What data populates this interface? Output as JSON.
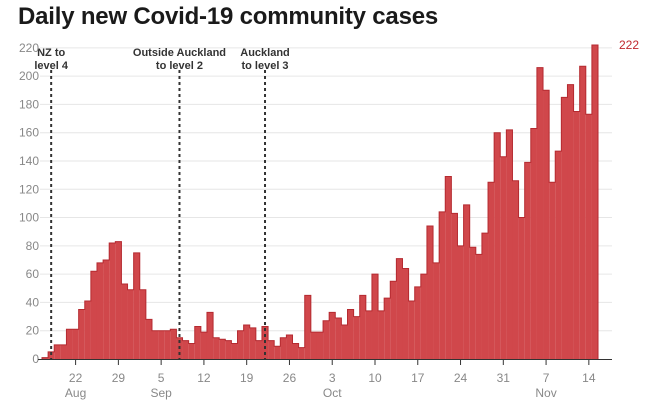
{
  "chart_data": {
    "type": "area",
    "title": "Daily new Covid-19 community cases",
    "xlabel": "",
    "ylabel": "",
    "ylim": [
      0,
      222
    ],
    "y_ticks": [
      0,
      20,
      40,
      60,
      80,
      100,
      120,
      140,
      160,
      180,
      200,
      220
    ],
    "x_ticks": [
      {
        "label": "22",
        "day": 5
      },
      {
        "label": "29",
        "day": 12
      },
      {
        "label": "5",
        "day": 19
      },
      {
        "label": "12",
        "day": 26
      },
      {
        "label": "19",
        "day": 33
      },
      {
        "label": "26",
        "day": 40
      },
      {
        "label": "3",
        "day": 47
      },
      {
        "label": "10",
        "day": 54
      },
      {
        "label": "17",
        "day": 61
      },
      {
        "label": "24",
        "day": 68
      },
      {
        "label": "31",
        "day": 75
      },
      {
        "label": "7",
        "day": 82
      },
      {
        "label": "14",
        "day": 89
      }
    ],
    "months": [
      {
        "label": "Aug",
        "day": 5
      },
      {
        "label": "Sep",
        "day": 19
      },
      {
        "label": "Oct",
        "day": 47
      },
      {
        "label": "Nov",
        "day": 82
      }
    ],
    "start_date": "Aug 17",
    "values": [
      1,
      5,
      10,
      10,
      21,
      21,
      35,
      41,
      62,
      68,
      70,
      82,
      83,
      53,
      49,
      75,
      49,
      28,
      20,
      20,
      20,
      21,
      15,
      13,
      11,
      23,
      19,
      33,
      15,
      14,
      13,
      11,
      20,
      24,
      22,
      13,
      23,
      13,
      9,
      15,
      17,
      11,
      8,
      45,
      19,
      19,
      27,
      33,
      29,
      24,
      35,
      30,
      45,
      34,
      60,
      34,
      43,
      55,
      71,
      64,
      41,
      51,
      60,
      94,
      68,
      104,
      129,
      103,
      80,
      109,
      79,
      74,
      89,
      125,
      160,
      143,
      162,
      126,
      100,
      139,
      163,
      206,
      190,
      125,
      147,
      185,
      194,
      175,
      207,
      173,
      222
    ],
    "last_value_label": "222",
    "annotations": [
      {
        "text": [
          "NZ to",
          "level 4"
        ],
        "day": 1
      },
      {
        "text": [
          "Outside Auckland",
          "to level 2"
        ],
        "day": 22
      },
      {
        "text": [
          "Auckland",
          "to level 3"
        ],
        "day": 36
      }
    ],
    "colors": {
      "fill": "#d0474b",
      "stroke": "#b52a30",
      "grid": "#e6e6e6",
      "axis": "#333333"
    }
  }
}
